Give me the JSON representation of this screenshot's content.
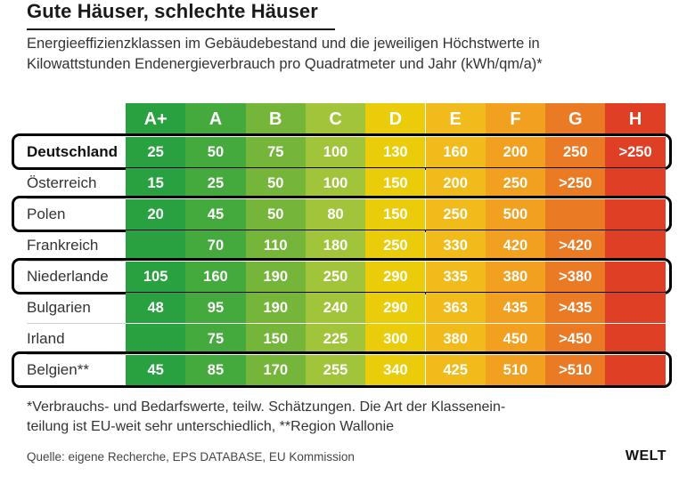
{
  "header": {
    "title": "Gute Häuser, schlechte Häuser",
    "subtitle_line1": "Energieeffizienzklassen im Gebäudebestand und die jeweiligen Höchstwerte in",
    "subtitle_line2": "Kilowattstunden Endenergieverbrauch pro Quadratmeter und Jahr (kWh/qm/a)*"
  },
  "footer": {
    "footnote_line1": "*Verbrauchs- und Bedarfswerte, teilw. Schätzungen. Die Art der Klassenein-",
    "footnote_line2": "teilung ist EU-weit sehr unterschiedlich, **Region Wallonie",
    "source": "Quelle: eigene Recherche, EPS DATABASE, EU Kommission",
    "logo": "WELT"
  },
  "colors": {
    "classes": [
      "#2aa140",
      "#45aa3d",
      "#74b53a",
      "#a2c43b",
      "#eacc0a",
      "#f2bb1c",
      "#f2a01f",
      "#eb7a25",
      "#df4025"
    ]
  },
  "chart_data": {
    "type": "table",
    "title": "Gute Häuser, schlechte Häuser",
    "unit": "kWh/qm/a",
    "classes": [
      "A+",
      "A",
      "B",
      "C",
      "D",
      "E",
      "F",
      "G",
      "H"
    ],
    "rows": [
      {
        "country": "Deutschland",
        "bold": true,
        "highlighted": true,
        "values": [
          "25",
          "50",
          "75",
          "100",
          "130",
          "160",
          "200",
          "250",
          ">250"
        ]
      },
      {
        "country": "Österreich",
        "bold": false,
        "highlighted": false,
        "values": [
          "15",
          "25",
          "50",
          "100",
          "150",
          "200",
          "250",
          ">250",
          ""
        ]
      },
      {
        "country": "Polen",
        "bold": false,
        "highlighted": true,
        "values": [
          "20",
          "45",
          "50",
          "80",
          "150",
          "250",
          "500",
          "",
          ""
        ]
      },
      {
        "country": "Frankreich",
        "bold": false,
        "highlighted": false,
        "values": [
          "",
          "70",
          "110",
          "180",
          "250",
          "330",
          "420",
          ">420",
          ""
        ]
      },
      {
        "country": "Niederlande",
        "bold": false,
        "highlighted": true,
        "values": [
          "105",
          "160",
          "190",
          "250",
          "290",
          "335",
          "380",
          ">380",
          ""
        ]
      },
      {
        "country": "Bulgarien",
        "bold": false,
        "highlighted": false,
        "values": [
          "48",
          "95",
          "190",
          "240",
          "290",
          "363",
          "435",
          ">435",
          ""
        ]
      },
      {
        "country": "Irland",
        "bold": false,
        "highlighted": false,
        "values": [
          "",
          "75",
          "150",
          "225",
          "300",
          "380",
          "450",
          ">450",
          ""
        ]
      },
      {
        "country": "Belgien**",
        "bold": false,
        "highlighted": true,
        "values": [
          "45",
          "85",
          "170",
          "255",
          "340",
          "425",
          "510",
          ">510",
          ""
        ]
      }
    ]
  }
}
